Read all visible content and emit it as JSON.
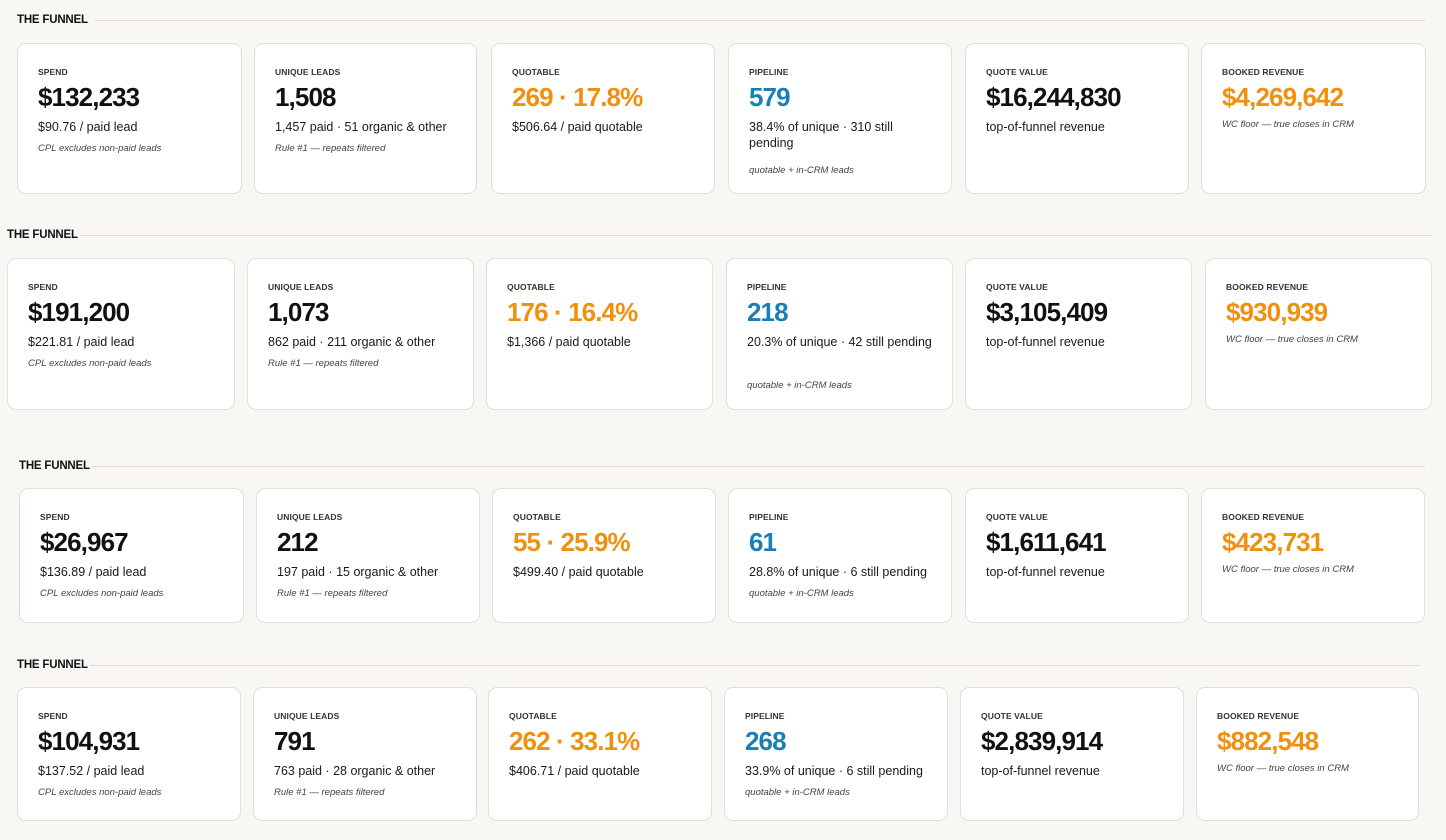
{
  "colors": {
    "accent_orange": "#f0900f",
    "accent_blue": "#1a7fb4",
    "background": "#f8f7f4"
  },
  "sections": [
    {
      "title": "THE FUNNEL",
      "cards": [
        {
          "label": "SPEND",
          "value": "$132,233",
          "sub": "$90.76 / paid lead",
          "note": "CPL excludes non-paid leads"
        },
        {
          "label": "UNIQUE LEADS",
          "value": "1,508",
          "sub": "1,457 paid · 51 organic & other",
          "note": "Rule #1 — repeats filtered"
        },
        {
          "label": "QUOTABLE",
          "value": "269 · 17.8%",
          "sub": "$506.64 / paid quotable",
          "note": ""
        },
        {
          "label": "PIPELINE",
          "value": "579",
          "sub": "38.4% of unique · 310 still pending",
          "note": "quotable + in-CRM leads"
        },
        {
          "label": "QUOTE VALUE",
          "value": "$16,244,830",
          "sub": "top-of-funnel revenue",
          "note": ""
        },
        {
          "label": "BOOKED REVENUE",
          "value": "$4,269,642",
          "sub": "",
          "note": "WC floor — true closes in CRM"
        }
      ]
    },
    {
      "title": "THE FUNNEL",
      "cards": [
        {
          "label": "SPEND",
          "value": "$191,200",
          "sub": "$221.81 / paid lead",
          "note": "CPL excludes non-paid leads"
        },
        {
          "label": "UNIQUE LEADS",
          "value": "1,073",
          "sub": "862 paid · 211 organic & other",
          "note": "Rule #1 — repeats filtered"
        },
        {
          "label": "QUOTABLE",
          "value": "176 · 16.4%",
          "sub": "$1,366 / paid quotable",
          "note": ""
        },
        {
          "label": "PIPELINE",
          "value": "218",
          "sub": "20.3% of unique · 42 still pending",
          "note": "quotable + in-CRM leads"
        },
        {
          "label": "QUOTE VALUE",
          "value": "$3,105,409",
          "sub": "top-of-funnel revenue",
          "note": ""
        },
        {
          "label": "BOOKED REVENUE",
          "value": "$930,939",
          "sub": "",
          "note": "WC floor — true closes in CRM"
        }
      ]
    },
    {
      "title": "THE FUNNEL",
      "cards": [
        {
          "label": "SPEND",
          "value": "$26,967",
          "sub": "$136.89 / paid lead",
          "note": "CPL excludes non-paid leads"
        },
        {
          "label": "UNIQUE LEADS",
          "value": "212",
          "sub": "197 paid · 15 organic & other",
          "note": "Rule #1 — repeats filtered"
        },
        {
          "label": "QUOTABLE",
          "value": "55 · 25.9%",
          "sub": "$499.40 / paid quotable",
          "note": ""
        },
        {
          "label": "PIPELINE",
          "value": "61",
          "sub": "28.8% of unique · 6 still pending",
          "note": "quotable + in-CRM leads"
        },
        {
          "label": "QUOTE VALUE",
          "value": "$1,611,641",
          "sub": "top-of-funnel revenue",
          "note": ""
        },
        {
          "label": "BOOKED REVENUE",
          "value": "$423,731",
          "sub": "",
          "note": "WC floor — true closes in CRM"
        }
      ]
    },
    {
      "title": "THE FUNNEL",
      "cards": [
        {
          "label": "SPEND",
          "value": "$104,931",
          "sub": "$137.52 / paid lead",
          "note": "CPL excludes non-paid leads"
        },
        {
          "label": "UNIQUE LEADS",
          "value": "791",
          "sub": "763 paid · 28 organic & other",
          "note": "Rule #1 — repeats filtered"
        },
        {
          "label": "QUOTABLE",
          "value": "262 · 33.1%",
          "sub": "$406.71 / paid quotable",
          "note": ""
        },
        {
          "label": "PIPELINE",
          "value": "268",
          "sub": "33.9% of unique · 6 still pending",
          "note": "quotable + in-CRM leads"
        },
        {
          "label": "QUOTE VALUE",
          "value": "$2,839,914",
          "sub": "top-of-funnel revenue",
          "note": ""
        },
        {
          "label": "BOOKED REVENUE",
          "value": "$882,548",
          "sub": "",
          "note": "WC floor — true closes in CRM"
        }
      ]
    }
  ]
}
